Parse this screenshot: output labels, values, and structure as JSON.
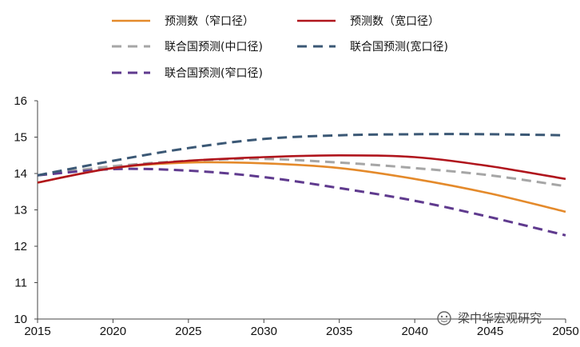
{
  "chart_data": {
    "type": "line",
    "title": "",
    "xlabel": "",
    "ylabel": "",
    "xlim": [
      2015,
      2050
    ],
    "ylim": [
      10,
      16
    ],
    "x_ticks": [
      "2015",
      "2020",
      "2025",
      "2030",
      "2035",
      "2040",
      "2045",
      "2050"
    ],
    "y_ticks": [
      "10",
      "11",
      "12",
      "13",
      "14",
      "15",
      "16"
    ],
    "grid": false,
    "legend_position": "top",
    "x": [
      2015,
      2020,
      2025,
      2030,
      2035,
      2040,
      2045,
      2050
    ],
    "series": [
      {
        "name": "预测数（窄口径）",
        "style": "solid",
        "color": "#E48A2B",
        "values": [
          13.75,
          14.15,
          14.3,
          14.28,
          14.15,
          13.85,
          13.45,
          12.95
        ]
      },
      {
        "name": "预测数（宽口径）",
        "style": "solid",
        "color": "#B0151D",
        "values": [
          13.75,
          14.15,
          14.35,
          14.45,
          14.5,
          14.45,
          14.2,
          13.85
        ]
      },
      {
        "name": "联合国预测(中口径)",
        "style": "dashed",
        "color": "#A6A6A6",
        "values": [
          13.95,
          14.2,
          14.35,
          14.4,
          14.3,
          14.15,
          13.95,
          13.65
        ]
      },
      {
        "name": "联合国预测(宽口径)",
        "style": "dashed",
        "color": "#3B5875",
        "values": [
          13.95,
          14.35,
          14.7,
          14.95,
          15.05,
          15.08,
          15.08,
          15.05
        ]
      },
      {
        "name": "联合国预测(窄口径)",
        "style": "dashed",
        "color": "#5F3A8E",
        "values": [
          13.95,
          14.12,
          14.08,
          13.9,
          13.6,
          13.25,
          12.8,
          12.3
        ]
      }
    ]
  },
  "watermark": {
    "text": "梁中华宏观研究",
    "icon": "wechat-icon"
  }
}
